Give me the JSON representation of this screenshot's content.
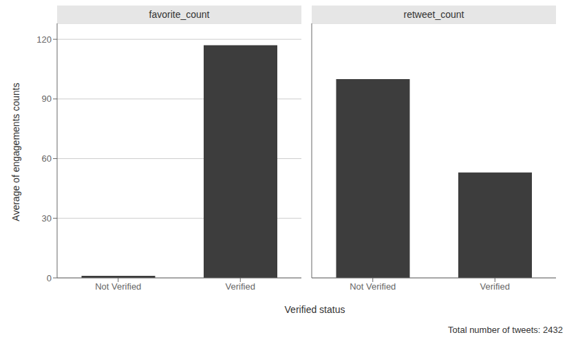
{
  "chart_data": [
    {
      "type": "bar",
      "title": "favorite_count",
      "categories": [
        "Not Verified",
        "Verified"
      ],
      "values": [
        1,
        117
      ],
      "color": "#3d3d3d",
      "ylim": [
        0,
        128
      ],
      "yticks": [
        0,
        30,
        60,
        90,
        120
      ],
      "grid": true
    },
    {
      "type": "bar",
      "title": "retweet_count",
      "categories": [
        "Not Verified",
        "Verified"
      ],
      "values": [
        100,
        53
      ],
      "color": "#3d3d3d",
      "ylim": [
        0,
        128
      ],
      "yticks": [
        0,
        30,
        60,
        90,
        120
      ],
      "grid": true,
      "tick_labels": "x"
    }
  ],
  "ylabel": "Average of engagements counts",
  "xlabel": "Verified status",
  "annotation": "Total number of tweets: 2432"
}
